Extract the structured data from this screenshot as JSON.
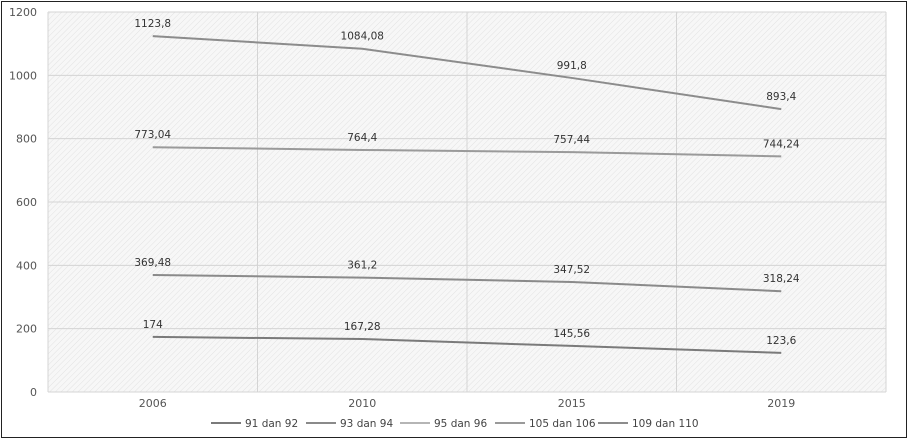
{
  "chart_data": {
    "type": "line",
    "title": "",
    "xlabel": "",
    "ylabel": "",
    "categories": [
      "2006",
      "2010",
      "2015",
      "2019"
    ],
    "ylim": [
      0,
      1200
    ],
    "yticks": [
      0,
      200,
      400,
      600,
      800,
      1000,
      1200
    ],
    "grid": true,
    "legend_position": "bottom",
    "series": [
      {
        "name": "91 dan 92",
        "values": [
          174,
          167.28,
          145.56,
          123.6
        ],
        "labels": [
          "174",
          "167,28",
          "145,56",
          "123,6"
        ],
        "color": "#7a7a7a"
      },
      {
        "name": "93 dan 94",
        "values": [
          369.48,
          361.2,
          347.52,
          318.24
        ],
        "labels": [
          "369,48",
          "361,2",
          "347,52",
          "318,24"
        ],
        "color": "#8a8a8a"
      },
      {
        "name": "95 dan 96",
        "values": [
          null,
          null,
          null,
          null
        ],
        "labels": [
          "",
          "",
          "",
          ""
        ],
        "color": "#b5b5b5"
      },
      {
        "name": "105 dan 106",
        "values": [
          773.04,
          764.4,
          757.44,
          744.24
        ],
        "labels": [
          "773,04",
          "764,4",
          "757,44",
          "744,24"
        ],
        "color": "#9a9a9a"
      },
      {
        "name": "109 dan 110",
        "values": [
          1123.8,
          1084.08,
          991.8,
          893.4
        ],
        "labels": [
          "1123,8",
          "1084,08",
          "991,8",
          "893,4"
        ],
        "color": "#8c8c8c"
      }
    ]
  }
}
